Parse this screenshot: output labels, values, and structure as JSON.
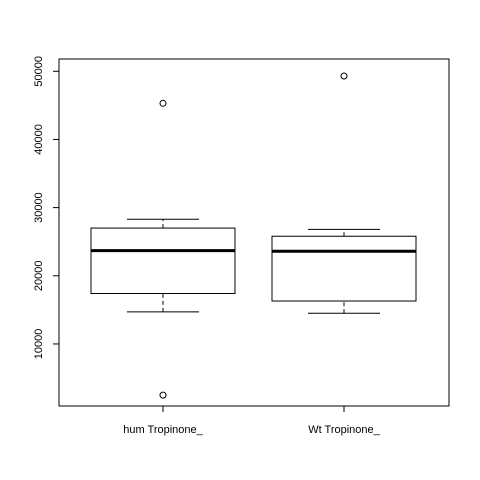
{
  "chart_data": {
    "type": "boxplot",
    "categories": [
      "hum Tropinone_",
      "Wt Tropinone_"
    ],
    "boxes": [
      {
        "category": "hum Tropinone_",
        "whisker_low": 14700,
        "q1": 17400,
        "median": 23700,
        "q3": 27000,
        "whisker_high": 28300,
        "outliers": [
          45300,
          2500
        ]
      },
      {
        "category": "Wt Tropinone_",
        "whisker_low": 14500,
        "q1": 16300,
        "median": 23600,
        "q3": 25800,
        "whisker_high": 26800,
        "outliers": [
          49300
        ]
      }
    ],
    "ylim": [
      900,
      51800
    ],
    "yticks": [
      10000,
      20000,
      30000,
      40000,
      50000
    ],
    "ytick_labels": [
      "10000",
      "20000",
      "30000",
      "40000",
      "50000"
    ],
    "title": "",
    "xlabel": "",
    "ylabel": "",
    "grid": false
  }
}
